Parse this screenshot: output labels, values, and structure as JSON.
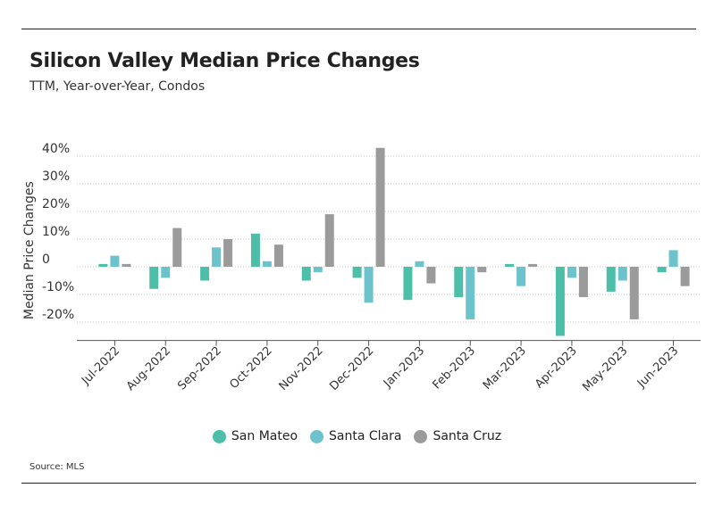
{
  "header": {
    "title": "Silicon Valley Median Price Changes",
    "subtitle": "TTM, Year-over-Year, Condos"
  },
  "footer": {
    "source": "Source: MLS"
  },
  "colors": {
    "San Mateo": "#4dbfa8",
    "Santa Clara": "#6cc3cc",
    "Santa Cruz": "#9b9b9b",
    "grid": "#c9c9c9",
    "axis": "#555555"
  },
  "chart_data": {
    "type": "bar",
    "ylabel": "Median Price Changes",
    "xlabel": "",
    "ylim": [
      -26,
      43
    ],
    "yticks": [
      40,
      30,
      20,
      10,
      0,
      -10,
      -20
    ],
    "ytick_labels": [
      "40%",
      "30%",
      "20%",
      "10%",
      "0",
      "-10%",
      "-20%"
    ],
    "grid": true,
    "legend_position": "bottom-center",
    "categories": [
      "Jul-2022",
      "Aug-2022",
      "Sep-2022",
      "Oct-2022",
      "Nov-2022",
      "Dec-2022",
      "Jan-2023",
      "Feb-2023",
      "Mar-2023",
      "Apr-2023",
      "May-2023",
      "Jun-2023"
    ],
    "series": [
      {
        "name": "San Mateo",
        "values": [
          1,
          -8,
          -5,
          12,
          -5,
          -4,
          -12,
          -11,
          1,
          -25,
          -9,
          -2
        ]
      },
      {
        "name": "Santa Clara",
        "values": [
          4,
          -4,
          7,
          2,
          -2,
          -13,
          2,
          -19,
          -7,
          -4,
          -5,
          6
        ]
      },
      {
        "name": "Santa Cruz",
        "values": [
          1,
          14,
          10,
          8,
          19,
          43,
          -6,
          -2,
          1,
          -11,
          -19,
          -7
        ]
      }
    ]
  }
}
